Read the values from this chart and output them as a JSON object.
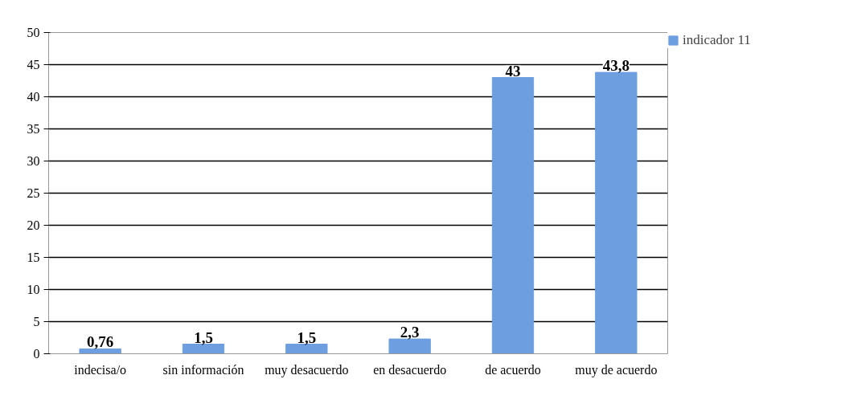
{
  "chart_data": {
    "type": "bar",
    "categories": [
      "indecisa/o",
      "sin información",
      "muy desacuerdo",
      "en desacuerdo",
      "de acuerdo",
      "muy de acuerdo"
    ],
    "series": [
      {
        "name": "indicador 11",
        "color": "#6d9fe0",
        "values": [
          0.76,
          1.5,
          1.5,
          2.3,
          43,
          43.8
        ],
        "value_labels": [
          "0,76",
          "1,5",
          "1,5",
          "2,3",
          "43",
          "43,8"
        ]
      }
    ],
    "ylim": [
      0,
      50
    ],
    "yticks": [
      0,
      5,
      10,
      15,
      20,
      25,
      30,
      35,
      40,
      45,
      50
    ],
    "grid": "y",
    "legend": "right"
  }
}
